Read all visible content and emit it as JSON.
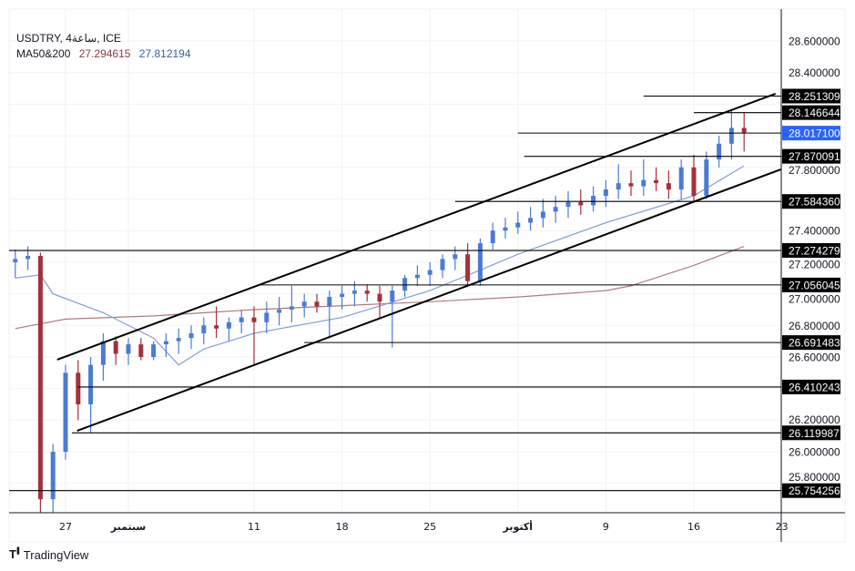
{
  "header": {
    "symbol_line": "USDTRY, 4ساعة, ICE",
    "ma_label": "MA50&200",
    "ma200_value": "27.294615",
    "ma50_value": "27.812194"
  },
  "footer": {
    "brand": "TradingView"
  },
  "colors": {
    "up": "#4a7bd4",
    "down": "#a3313d",
    "ma50": "#7f9fd6",
    "ma200": "#b07a7e",
    "current_price": "#2962ff",
    "level_label": "#000000"
  },
  "chart_data": {
    "type": "candlestick",
    "title": "USDTRY, 4ساعة, ICE",
    "ylim": [
      25.7,
      28.7
    ],
    "grid": true,
    "y_ticks": [
      "28.600000",
      "28.400000",
      "27.800000",
      "27.400000",
      "27.200000",
      "27.000000",
      "26.800000",
      "26.600000",
      "26.200000",
      "26.000000",
      "25.800000"
    ],
    "x_ticks": [
      {
        "date": "2023-08-27",
        "label": "27"
      },
      {
        "date": "2023-09-01",
        "label": "سبتمبر"
      },
      {
        "date": "2023-09-11",
        "label": "11"
      },
      {
        "date": "2023-09-18",
        "label": "18"
      },
      {
        "date": "2023-09-25",
        "label": "25"
      },
      {
        "date": "2023-10-02",
        "label": "أكتوبر"
      },
      {
        "date": "2023-10-09",
        "label": "9"
      },
      {
        "date": "2023-10-16",
        "label": "16"
      },
      {
        "date": "2023-10-23",
        "label": "23"
      }
    ],
    "candles": [
      [
        "2023-08-23",
        27.2,
        27.28,
        27.1,
        27.22
      ],
      [
        "2023-08-24",
        27.22,
        27.3,
        27.15,
        27.24
      ],
      [
        "2023-08-25",
        27.24,
        27.26,
        25.6,
        25.7
      ],
      [
        "2023-08-26",
        25.7,
        26.05,
        25.6,
        26.0
      ],
      [
        "2023-08-27",
        26.0,
        26.55,
        25.95,
        26.5
      ],
      [
        "2023-08-28",
        26.5,
        26.58,
        26.2,
        26.3
      ],
      [
        "2023-08-29",
        26.3,
        26.6,
        26.12,
        26.55
      ],
      [
        "2023-08-30",
        26.55,
        26.75,
        26.45,
        26.7
      ],
      [
        "2023-08-31",
        26.7,
        26.73,
        26.55,
        26.62
      ],
      [
        "2023-09-01",
        26.62,
        26.72,
        26.55,
        26.68
      ],
      [
        "2023-09-02",
        26.68,
        26.72,
        26.58,
        26.6
      ],
      [
        "2023-09-03",
        26.6,
        26.7,
        26.58,
        26.68
      ],
      [
        "2023-09-04",
        26.68,
        26.75,
        26.6,
        26.7
      ],
      [
        "2023-09-05",
        26.7,
        26.78,
        26.62,
        26.72
      ],
      [
        "2023-09-06",
        26.72,
        26.8,
        26.65,
        26.75
      ],
      [
        "2023-09-07",
        26.75,
        26.85,
        26.68,
        26.8
      ],
      [
        "2023-09-08",
        26.8,
        26.92,
        26.72,
        26.78
      ],
      [
        "2023-09-09",
        26.78,
        26.85,
        26.7,
        26.82
      ],
      [
        "2023-09-10",
        26.82,
        26.9,
        26.75,
        26.85
      ],
      [
        "2023-09-11",
        26.85,
        26.92,
        26.55,
        26.82
      ],
      [
        "2023-09-12",
        26.82,
        26.95,
        26.75,
        26.88
      ],
      [
        "2023-09-13",
        26.88,
        26.98,
        26.8,
        26.9
      ],
      [
        "2023-09-14",
        26.9,
        27.05,
        26.82,
        26.92
      ],
      [
        "2023-09-15",
        26.92,
        27.0,
        26.85,
        26.95
      ],
      [
        "2023-09-16",
        26.95,
        27.0,
        26.88,
        26.92
      ],
      [
        "2023-09-17",
        26.92,
        27.02,
        26.72,
        26.98
      ],
      [
        "2023-09-18",
        26.98,
        27.05,
        26.9,
        27.0
      ],
      [
        "2023-09-19",
        27.0,
        27.08,
        26.92,
        27.02
      ],
      [
        "2023-09-20",
        27.02,
        27.06,
        26.95,
        27.0
      ],
      [
        "2023-09-21",
        27.0,
        27.05,
        26.85,
        26.95
      ],
      [
        "2023-09-22",
        26.95,
        27.05,
        26.66,
        27.02
      ],
      [
        "2023-09-23",
        27.02,
        27.12,
        26.98,
        27.1
      ],
      [
        "2023-09-24",
        27.1,
        27.18,
        27.05,
        27.12
      ],
      [
        "2023-09-25",
        27.12,
        27.2,
        27.05,
        27.15
      ],
      [
        "2023-09-26",
        27.15,
        27.25,
        27.1,
        27.22
      ],
      [
        "2023-09-27",
        27.22,
        27.3,
        27.15,
        27.25
      ],
      [
        "2023-09-28",
        27.25,
        27.32,
        27.05,
        27.08
      ],
      [
        "2023-09-29",
        27.08,
        27.35,
        27.05,
        27.32
      ],
      [
        "2023-09-30",
        27.32,
        27.45,
        27.28,
        27.4
      ],
      [
        "2023-10-01",
        27.4,
        27.48,
        27.35,
        27.42
      ],
      [
        "2023-10-02",
        27.42,
        27.52,
        27.38,
        27.45
      ],
      [
        "2023-10-03",
        27.45,
        27.55,
        27.4,
        27.48
      ],
      [
        "2023-10-04",
        27.48,
        27.6,
        27.42,
        27.52
      ],
      [
        "2023-10-05",
        27.52,
        27.62,
        27.45,
        27.55
      ],
      [
        "2023-10-06",
        27.55,
        27.65,
        27.48,
        27.58
      ],
      [
        "2023-10-07",
        27.58,
        27.66,
        27.5,
        27.56
      ],
      [
        "2023-10-08",
        27.56,
        27.68,
        27.52,
        27.62
      ],
      [
        "2023-10-09",
        27.62,
        27.72,
        27.55,
        27.66
      ],
      [
        "2023-10-10",
        27.66,
        27.82,
        27.6,
        27.7
      ],
      [
        "2023-10-11",
        27.7,
        27.78,
        27.62,
        27.68
      ],
      [
        "2023-10-12",
        27.68,
        27.85,
        27.62,
        27.72
      ],
      [
        "2023-10-13",
        27.72,
        27.8,
        27.65,
        27.7
      ],
      [
        "2023-10-14",
        27.7,
        27.78,
        27.6,
        27.66
      ],
      [
        "2023-10-15",
        27.66,
        27.85,
        27.6,
        27.8
      ],
      [
        "2023-10-16",
        27.8,
        27.88,
        27.58,
        27.62
      ],
      [
        "2023-10-17",
        27.62,
        27.9,
        27.6,
        27.85
      ],
      [
        "2023-10-18",
        27.85,
        28.0,
        27.8,
        27.95
      ],
      [
        "2023-10-19",
        27.95,
        28.16,
        27.85,
        28.05
      ],
      [
        "2023-10-20",
        28.05,
        28.15,
        27.9,
        28.02
      ]
    ],
    "ma50": [
      [
        "2023-08-23",
        27.1
      ],
      [
        "2023-08-25",
        27.12
      ],
      [
        "2023-08-26",
        27.0
      ],
      [
        "2023-08-30",
        26.88
      ],
      [
        "2023-09-03",
        26.72
      ],
      [
        "2023-09-05",
        26.55
      ],
      [
        "2023-09-07",
        26.65
      ],
      [
        "2023-09-11",
        26.75
      ],
      [
        "2023-09-18",
        26.85
      ],
      [
        "2023-09-25",
        27.02
      ],
      [
        "2023-09-29",
        27.15
      ],
      [
        "2023-10-02",
        27.25
      ],
      [
        "2023-10-09",
        27.45
      ],
      [
        "2023-10-16",
        27.62
      ],
      [
        "2023-10-20",
        27.81
      ]
    ],
    "ma200": [
      [
        "2023-08-23",
        26.78
      ],
      [
        "2023-08-27",
        26.84
      ],
      [
        "2023-09-03",
        26.86
      ],
      [
        "2023-09-11",
        26.9
      ],
      [
        "2023-09-25",
        26.95
      ],
      [
        "2023-10-02",
        26.98
      ],
      [
        "2023-10-09",
        27.02
      ],
      [
        "2023-10-11",
        27.05
      ],
      [
        "2023-10-16",
        27.18
      ],
      [
        "2023-10-20",
        27.3
      ]
    ],
    "channel": {
      "upper": [
        [
          "2023-08-26T08:00",
          26.583
        ],
        [
          "2023-10-22T12:00",
          28.266
        ]
      ],
      "lower": [
        [
          "2023-08-27T22:00",
          26.133
        ],
        [
          "2023-10-22T22:00",
          27.787
        ]
      ]
    },
    "levels": [
      {
        "value": 28.251309,
        "label": "28.251309",
        "from": "2023-10-12"
      },
      {
        "value": 28.146644,
        "label": "28.146644",
        "from": "2023-10-16"
      },
      {
        "value": 28.0171,
        "label": "28.017100",
        "from": "2023-10-02",
        "current": true
      },
      {
        "value": 27.870091,
        "label": "27.870091",
        "from": "2023-10-02T12:00"
      },
      {
        "value": 27.58436,
        "label": "27.584360",
        "from": "2023-09-27"
      },
      {
        "value": 27.274279,
        "label": "27.274279",
        "from": "2023-08-22"
      },
      {
        "value": 27.056045,
        "label": "27.056045",
        "from": "2023-09-11T12:00"
      },
      {
        "value": 26.691483,
        "label": "26.691483",
        "from": "2023-09-15"
      },
      {
        "value": 26.410243,
        "label": "26.410243",
        "from": "2023-08-28"
      },
      {
        "value": 26.119987,
        "label": "26.119987",
        "from": "2023-08-27T12:00"
      },
      {
        "value": 25.754256,
        "label": "25.754256",
        "from": "2023-08-22"
      }
    ]
  }
}
